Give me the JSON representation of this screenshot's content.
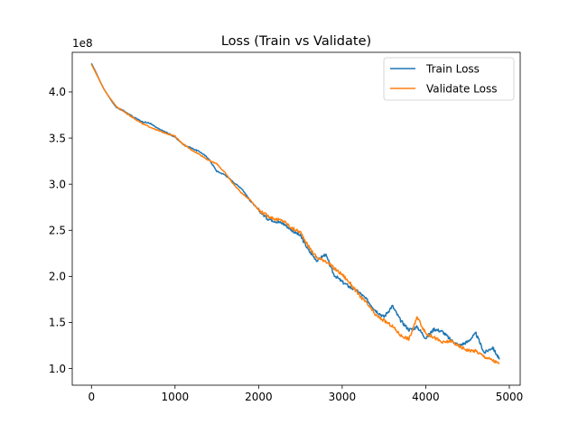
{
  "chart_data": {
    "type": "line",
    "title": "Loss (Train vs Validate)",
    "xlabel": "",
    "ylabel": "",
    "y_scale_note": "1e8",
    "xlim": [
      -230,
      5130
    ],
    "ylim": [
      0.82,
      4.43
    ],
    "x_ticks": [
      0,
      1000,
      2000,
      3000,
      4000,
      5000
    ],
    "x_tick_labels": [
      "0",
      "1000",
      "2000",
      "3000",
      "4000",
      "5000"
    ],
    "y_ticks": [
      1.0,
      1.5,
      2.0,
      2.5,
      3.0,
      3.5,
      4.0
    ],
    "y_tick_labels": [
      "1.0",
      "1.5",
      "2.0",
      "2.5",
      "3.0",
      "3.5",
      "4.0"
    ],
    "grid": false,
    "legend_position": "top-right",
    "series": [
      {
        "name": "Train Loss",
        "color": "#1f77b4",
        "x": [
          0,
          50,
          100,
          150,
          200,
          250,
          300,
          400,
          500,
          600,
          700,
          800,
          900,
          1000,
          1100,
          1200,
          1300,
          1400,
          1500,
          1600,
          1700,
          1800,
          1900,
          2000,
          2100,
          2200,
          2300,
          2400,
          2500,
          2600,
          2700,
          2800,
          2900,
          3000,
          3100,
          3200,
          3300,
          3400,
          3500,
          3600,
          3700,
          3800,
          3900,
          4000,
          4100,
          4200,
          4300,
          4400,
          4500,
          4600,
          4700,
          4800,
          4880
        ],
        "y": [
          4.31,
          4.22,
          4.12,
          4.03,
          3.96,
          3.89,
          3.83,
          3.79,
          3.73,
          3.68,
          3.66,
          3.6,
          3.56,
          3.51,
          3.43,
          3.39,
          3.35,
          3.28,
          3.14,
          3.1,
          3.02,
          2.95,
          2.82,
          2.72,
          2.63,
          2.6,
          2.57,
          2.5,
          2.44,
          2.28,
          2.17,
          2.24,
          2.02,
          1.94,
          1.88,
          1.83,
          1.74,
          1.63,
          1.56,
          1.68,
          1.52,
          1.42,
          1.45,
          1.33,
          1.43,
          1.4,
          1.31,
          1.25,
          1.29,
          1.38,
          1.17,
          1.23,
          1.1
        ]
      },
      {
        "name": "Validate Loss",
        "color": "#ff7f0e",
        "x": [
          0,
          50,
          100,
          150,
          200,
          250,
          300,
          400,
          500,
          600,
          700,
          800,
          900,
          1000,
          1100,
          1200,
          1300,
          1400,
          1500,
          1600,
          1700,
          1800,
          1900,
          2000,
          2100,
          2200,
          2300,
          2400,
          2500,
          2600,
          2700,
          2800,
          2900,
          3000,
          3100,
          3200,
          3300,
          3400,
          3500,
          3600,
          3700,
          3800,
          3900,
          4000,
          4100,
          4200,
          4300,
          4400,
          4500,
          4600,
          4700,
          4800,
          4880
        ],
        "y": [
          4.3,
          4.21,
          4.12,
          4.03,
          3.96,
          3.9,
          3.84,
          3.78,
          3.72,
          3.66,
          3.62,
          3.58,
          3.55,
          3.52,
          3.43,
          3.37,
          3.32,
          3.26,
          3.22,
          3.12,
          3.0,
          2.9,
          2.83,
          2.72,
          2.66,
          2.62,
          2.6,
          2.52,
          2.48,
          2.32,
          2.2,
          2.17,
          2.09,
          2.02,
          1.92,
          1.8,
          1.7,
          1.58,
          1.52,
          1.46,
          1.36,
          1.32,
          1.56,
          1.38,
          1.34,
          1.28,
          1.3,
          1.24,
          1.2,
          1.19,
          1.13,
          1.09,
          1.05
        ]
      }
    ]
  }
}
